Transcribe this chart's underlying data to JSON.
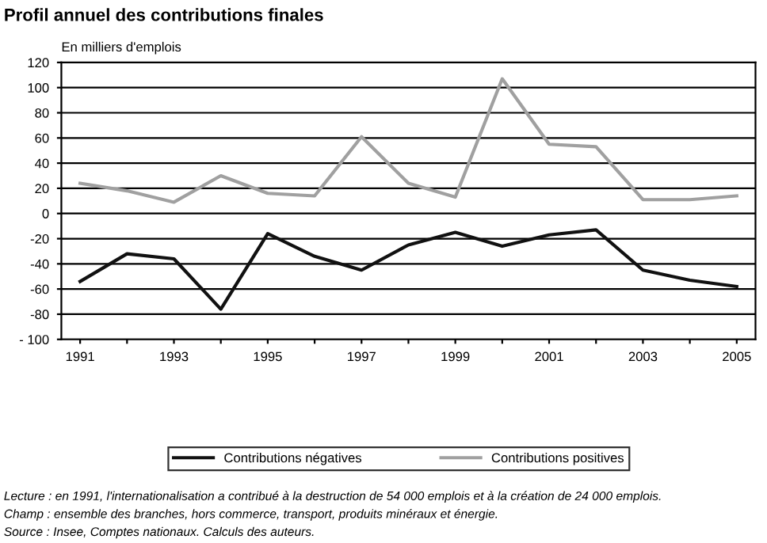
{
  "chart_data": {
    "type": "line",
    "title": "Profil annuel des contributions finales",
    "ylabel": "En milliers d'emplois",
    "categories": [
      "1991",
      null,
      "1993",
      null,
      "1995",
      null,
      "1997",
      null,
      "1999",
      null,
      "2001",
      null,
      "2003",
      null,
      "2005"
    ],
    "series": [
      {
        "name": "Contributions négatives",
        "color": "#111111",
        "values": [
          -54,
          -32,
          -36,
          -76,
          -16,
          -34,
          -45,
          -25,
          -15,
          -26,
          -17,
          -13,
          -45,
          -53,
          -58
        ]
      },
      {
        "name": "Contributions positives",
        "color": "#a0a0a0",
        "values": [
          24,
          18,
          9,
          30,
          16,
          14,
          61,
          24,
          13,
          107,
          55,
          53,
          11,
          11,
          14
        ]
      }
    ],
    "ylim": [
      -100,
      120
    ],
    "yticks": [
      {
        "value": -100,
        "label": "- 100"
      },
      -80,
      -60,
      -40,
      -20,
      0,
      20,
      40,
      60,
      80,
      100,
      120
    ],
    "grid": "y",
    "legend": "bottom",
    "marker": "none",
    "line_style": "solid",
    "annotations": [
      "Lecture : en 1991, l'internationalisation a contribué à la destruction de 54 000 emplois et à la création de 24 000 emplois.",
      "Champ : ensemble des branches, hors commerce, transport, produits minéraux et énergie.",
      "Source : Insee, Comptes nationaux. Calculs des auteurs."
    ]
  }
}
